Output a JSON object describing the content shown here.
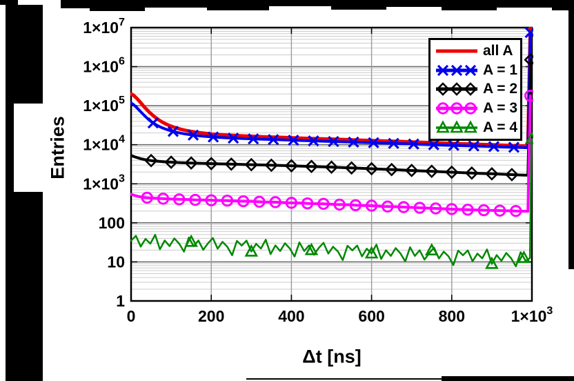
{
  "chart_data": {
    "type": "line",
    "title": "",
    "xlabel": "Δt [ns]",
    "ylabel": "Entries",
    "x_axis": {
      "min": 0,
      "max": 1000,
      "ticks": [
        {
          "x": 0,
          "t": "0"
        },
        {
          "x": 200,
          "t": "200"
        },
        {
          "x": 400,
          "t": "400"
        },
        {
          "x": 600,
          "t": "600"
        },
        {
          "x": 800,
          "t": "800"
        },
        {
          "x": 1000,
          "t": "1×10",
          "e": "3"
        }
      ]
    },
    "y_axis": {
      "scale": "log",
      "min": 1,
      "max": 10000000,
      "ticks": [
        {
          "v": 1,
          "t": "1"
        },
        {
          "v": 10,
          "t": "10"
        },
        {
          "v": 100,
          "t": "100"
        },
        {
          "v": 1000,
          "t": "1×10",
          "e": "3"
        },
        {
          "v": 10000,
          "t": "1×10",
          "e": "4"
        },
        {
          "v": 100000,
          "t": "1×10",
          "e": "5"
        },
        {
          "v": 1000000,
          "t": "1×10",
          "e": "6"
        },
        {
          "v": 10000000,
          "t": "1×10",
          "e": "7"
        }
      ]
    },
    "grid": {
      "major": true,
      "minor_log": true
    },
    "legend_position": "top-right",
    "series": [
      {
        "name": "all A",
        "color": "#ee0000",
        "line_width": 5,
        "marker": "none",
        "marker_xs": [],
        "points": [
          [
            0,
            200000
          ],
          [
            6,
            185000
          ],
          [
            12,
            162000
          ],
          [
            18,
            140000
          ],
          [
            24,
            120000
          ],
          [
            30,
            101000
          ],
          [
            36,
            86000
          ],
          [
            42,
            74000
          ],
          [
            48,
            64500
          ],
          [
            54,
            57000
          ],
          [
            60,
            50500
          ],
          [
            68,
            44000
          ],
          [
            76,
            39000
          ],
          [
            84,
            35200
          ],
          [
            92,
            32200
          ],
          [
            100,
            29800
          ],
          [
            112,
            27000
          ],
          [
            124,
            24900
          ],
          [
            136,
            23300
          ],
          [
            150,
            21900
          ],
          [
            165,
            20700
          ],
          [
            180,
            19800
          ],
          [
            200,
            18800
          ],
          [
            220,
            18100
          ],
          [
            240,
            17600
          ],
          [
            260,
            17200
          ],
          [
            280,
            16800
          ],
          [
            300,
            16500
          ],
          [
            330,
            16000
          ],
          [
            360,
            15600
          ],
          [
            390,
            15200
          ],
          [
            420,
            14800
          ],
          [
            450,
            14450
          ],
          [
            480,
            14100
          ],
          [
            510,
            13800
          ],
          [
            540,
            13450
          ],
          [
            570,
            13100
          ],
          [
            600,
            12800
          ],
          [
            630,
            12500
          ],
          [
            660,
            12200
          ],
          [
            690,
            11900
          ],
          [
            720,
            11600
          ],
          [
            750,
            11300
          ],
          [
            780,
            11000
          ],
          [
            810,
            10700
          ],
          [
            840,
            10450
          ],
          [
            870,
            10200
          ],
          [
            900,
            9950
          ],
          [
            930,
            9700
          ],
          [
            960,
            9450
          ],
          [
            980,
            9300
          ],
          [
            990,
            9250
          ],
          [
            996,
            10500000
          ]
        ]
      },
      {
        "name": "A = 1",
        "color": "#0000ee",
        "line_width": 4,
        "marker": "x",
        "marker_xs": [
          55,
          105,
          155,
          205,
          255,
          305,
          355,
          405,
          455,
          505,
          555,
          605,
          655,
          705,
          755,
          805,
          855,
          905,
          955,
          996
        ],
        "points": [
          [
            0,
            118000
          ],
          [
            6,
            107000
          ],
          [
            12,
            94000
          ],
          [
            18,
            81000
          ],
          [
            24,
            70000
          ],
          [
            30,
            60500
          ],
          [
            36,
            52500
          ],
          [
            42,
            46000
          ],
          [
            48,
            40800
          ],
          [
            54,
            36800
          ],
          [
            60,
            33500
          ],
          [
            68,
            30200
          ],
          [
            76,
            27600
          ],
          [
            84,
            25600
          ],
          [
            92,
            24000
          ],
          [
            100,
            22600
          ],
          [
            112,
            21000
          ],
          [
            124,
            19800
          ],
          [
            136,
            18800
          ],
          [
            150,
            17900
          ],
          [
            165,
            17100
          ],
          [
            180,
            16500
          ],
          [
            200,
            15900
          ],
          [
            220,
            15400
          ],
          [
            240,
            15000
          ],
          [
            260,
            14700
          ],
          [
            280,
            14400
          ],
          [
            300,
            14200
          ],
          [
            330,
            13800
          ],
          [
            360,
            13500
          ],
          [
            390,
            13200
          ],
          [
            420,
            12900
          ],
          [
            450,
            12600
          ],
          [
            480,
            12300
          ],
          [
            510,
            12050
          ],
          [
            540,
            11800
          ],
          [
            570,
            11550
          ],
          [
            600,
            11300
          ],
          [
            630,
            11050
          ],
          [
            660,
            10800
          ],
          [
            690,
            10550
          ],
          [
            720,
            10300
          ],
          [
            750,
            10050
          ],
          [
            780,
            9800
          ],
          [
            810,
            9600
          ],
          [
            840,
            9400
          ],
          [
            870,
            9200
          ],
          [
            900,
            9000
          ],
          [
            930,
            8800
          ],
          [
            960,
            8600
          ],
          [
            980,
            8450
          ],
          [
            990,
            8400
          ],
          [
            996,
            7500000
          ]
        ]
      },
      {
        "name": "A = 2",
        "color": "#000000",
        "line_width": 4,
        "marker": "diamond",
        "marker_xs": [
          50,
          100,
          150,
          200,
          250,
          300,
          350,
          400,
          450,
          500,
          550,
          600,
          650,
          700,
          750,
          800,
          850,
          900,
          950,
          997
        ],
        "points": [
          [
            0,
            5300
          ],
          [
            8,
            4950
          ],
          [
            16,
            4650
          ],
          [
            24,
            4400
          ],
          [
            32,
            4200
          ],
          [
            40,
            4050
          ],
          [
            50,
            3930
          ],
          [
            60,
            3830
          ],
          [
            72,
            3730
          ],
          [
            84,
            3650
          ],
          [
            100,
            3570
          ],
          [
            120,
            3490
          ],
          [
            140,
            3430
          ],
          [
            160,
            3380
          ],
          [
            185,
            3320
          ],
          [
            210,
            3270
          ],
          [
            240,
            3210
          ],
          [
            270,
            3150
          ],
          [
            300,
            3090
          ],
          [
            330,
            3030
          ],
          [
            360,
            2970
          ],
          [
            390,
            2910
          ],
          [
            420,
            2850
          ],
          [
            450,
            2780
          ],
          [
            480,
            2710
          ],
          [
            510,
            2640
          ],
          [
            540,
            2570
          ],
          [
            570,
            2500
          ],
          [
            600,
            2430
          ],
          [
            630,
            2360
          ],
          [
            660,
            2290
          ],
          [
            690,
            2220
          ],
          [
            720,
            2150
          ],
          [
            750,
            2090
          ],
          [
            780,
            2020
          ],
          [
            810,
            1960
          ],
          [
            840,
            1900
          ],
          [
            870,
            1850
          ],
          [
            900,
            1800
          ],
          [
            930,
            1750
          ],
          [
            960,
            1700
          ],
          [
            980,
            1670
          ],
          [
            990,
            1660
          ],
          [
            997,
            1500000
          ]
        ]
      },
      {
        "name": "A = 3",
        "color": "#ff00ff",
        "line_width": 4,
        "marker": "circle",
        "marker_xs": [
          40,
          80,
          120,
          160,
          200,
          240,
          280,
          320,
          360,
          400,
          440,
          480,
          520,
          560,
          600,
          640,
          680,
          720,
          760,
          800,
          840,
          880,
          920,
          960,
          996
        ],
        "points": [
          [
            0,
            540
          ],
          [
            8,
            505
          ],
          [
            16,
            480
          ],
          [
            24,
            462
          ],
          [
            32,
            449
          ],
          [
            40,
            440
          ],
          [
            52,
            430
          ],
          [
            64,
            423
          ],
          [
            76,
            417
          ],
          [
            90,
            411
          ],
          [
            105,
            405
          ],
          [
            120,
            400
          ],
          [
            140,
            396
          ],
          [
            160,
            387
          ],
          [
            185,
            384
          ],
          [
            210,
            374
          ],
          [
            240,
            370
          ],
          [
            270,
            359
          ],
          [
            300,
            355
          ],
          [
            330,
            343
          ],
          [
            360,
            339
          ],
          [
            390,
            327
          ],
          [
            420,
            323
          ],
          [
            450,
            311
          ],
          [
            480,
            307
          ],
          [
            510,
            295
          ],
          [
            540,
            291
          ],
          [
            570,
            279
          ],
          [
            600,
            275
          ],
          [
            630,
            263
          ],
          [
            660,
            259
          ],
          [
            690,
            250
          ],
          [
            720,
            243
          ],
          [
            750,
            236
          ],
          [
            780,
            229
          ],
          [
            810,
            223
          ],
          [
            840,
            217
          ],
          [
            870,
            212
          ],
          [
            900,
            208
          ],
          [
            930,
            204
          ],
          [
            960,
            201
          ],
          [
            980,
            199
          ],
          [
            990,
            198
          ],
          [
            996,
            180000
          ]
        ]
      },
      {
        "name": "A = 4",
        "color": "#008800",
        "line_width": 2.5,
        "marker": "triangle",
        "marker_xs": [
          150,
          300,
          450,
          600,
          750,
          900,
          980,
          999
        ],
        "points": [
          [
            0,
            35.0
          ],
          [
            12,
            46.7
          ],
          [
            24,
            24.6
          ],
          [
            36,
            38.8
          ],
          [
            48,
            29.3
          ],
          [
            60,
            49.3
          ],
          [
            72,
            21.1
          ],
          [
            84,
            35.3
          ],
          [
            96,
            25.3
          ],
          [
            108,
            40.0
          ],
          [
            120,
            29.3
          ],
          [
            132,
            18.3
          ],
          [
            144,
            42.2
          ],
          [
            156,
            25.3
          ],
          [
            168,
            35.2
          ],
          [
            180,
            20.3
          ],
          [
            192,
            30.1
          ],
          [
            204,
            41.0
          ],
          [
            216,
            21.8
          ],
          [
            228,
            32.6
          ],
          [
            240,
            24.5
          ],
          [
            252,
            14.8
          ],
          [
            264,
            34.5
          ],
          [
            276,
            26.2
          ],
          [
            288,
            35.0
          ],
          [
            300,
            18.4
          ],
          [
            312,
            29.1
          ],
          [
            324,
            22.0
          ],
          [
            336,
            37.0
          ],
          [
            348,
            15.8
          ],
          [
            360,
            26.4
          ],
          [
            372,
            19.0
          ],
          [
            384,
            30.0
          ],
          [
            396,
            22.0
          ],
          [
            408,
            13.7
          ],
          [
            420,
            31.6
          ],
          [
            432,
            19.0
          ],
          [
            444,
            26.4
          ],
          [
            456,
            15.2
          ],
          [
            468,
            22.6
          ],
          [
            480,
            30.8
          ],
          [
            492,
            16.3
          ],
          [
            504,
            24.4
          ],
          [
            516,
            18.4
          ],
          [
            528,
            11.1
          ],
          [
            540,
            25.9
          ],
          [
            552,
            19.7
          ],
          [
            564,
            26.2
          ],
          [
            576,
            13.8
          ],
          [
            588,
            21.8
          ],
          [
            600,
            16.5
          ],
          [
            612,
            27.7
          ],
          [
            624,
            11.9
          ],
          [
            636,
            19.8
          ],
          [
            648,
            14.2
          ],
          [
            660,
            22.5
          ],
          [
            672,
            16.5
          ],
          [
            684,
            10.3
          ],
          [
            696,
            23.7
          ],
          [
            708,
            14.2
          ],
          [
            720,
            19.8
          ],
          [
            732,
            11.4
          ],
          [
            744,
            16.9
          ],
          [
            756,
            23.1
          ],
          [
            768,
            12.2
          ],
          [
            780,
            18.3
          ],
          [
            792,
            13.8
          ],
          [
            804,
            8.3
          ],
          [
            816,
            19.4
          ],
          [
            828,
            14.8
          ],
          [
            840,
            19.7
          ],
          [
            852,
            10.4
          ],
          [
            864,
            16.3
          ],
          [
            876,
            12.3
          ],
          [
            888,
            20.8
          ],
          [
            900,
            8.9
          ],
          [
            912,
            14.9
          ],
          [
            924,
            10.7
          ],
          [
            936,
            16.9
          ],
          [
            948,
            12.4
          ],
          [
            960,
            7.7
          ],
          [
            972,
            17.8
          ],
          [
            984,
            10.7
          ],
          [
            990,
            11.5
          ],
          [
            995,
            12.5
          ],
          [
            999,
            14000
          ]
        ]
      }
    ]
  }
}
